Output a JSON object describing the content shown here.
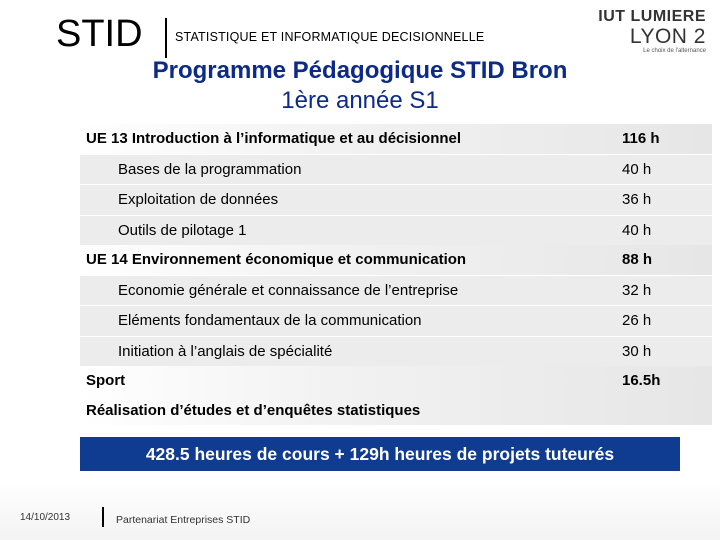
{
  "header": {
    "brand": "STID",
    "subtitle": "STATISTIQUE ET INFORMATIQUE DECISIONNELLE",
    "logo": {
      "top": "IUT LUMIERE",
      "middle": "LYON 2",
      "tagline": "Le choix de l'alternance"
    }
  },
  "title": {
    "main": "Programme Pédagogique STID Bron",
    "sub": "1ère année S1"
  },
  "program": {
    "rows": [
      {
        "type": "ue",
        "label": "UE 13 Introduction à l’informatique et au décisionnel",
        "hours": "116 h"
      },
      {
        "type": "item",
        "label": "Bases de la programmation",
        "hours": "40 h"
      },
      {
        "type": "item",
        "label": "Exploitation de données",
        "hours": "36 h"
      },
      {
        "type": "item",
        "label": "Outils de pilotage 1",
        "hours": "40 h"
      },
      {
        "type": "ue",
        "label": "UE 14 Environnement économique et communication",
        "hours": "88 h"
      },
      {
        "type": "item",
        "label": "Economie générale et connaissance de l’entreprise",
        "hours": "32 h"
      },
      {
        "type": "item",
        "label": "Eléments fondamentaux de la communication",
        "hours": "26 h"
      },
      {
        "type": "item",
        "label": "Initiation à l’anglais de spécialité",
        "hours": "30 h"
      },
      {
        "type": "ue",
        "label": "Sport",
        "hours": "16.5h"
      },
      {
        "type": "ue",
        "label": "Réalisation d’études et d’enquêtes statistiques",
        "hours": ""
      }
    ]
  },
  "banner": "428.5 heures de cours + 129h heures de projets tuteurés",
  "footer": {
    "date": "14/10/2013",
    "partner": "Partenariat Entreprises STID"
  }
}
